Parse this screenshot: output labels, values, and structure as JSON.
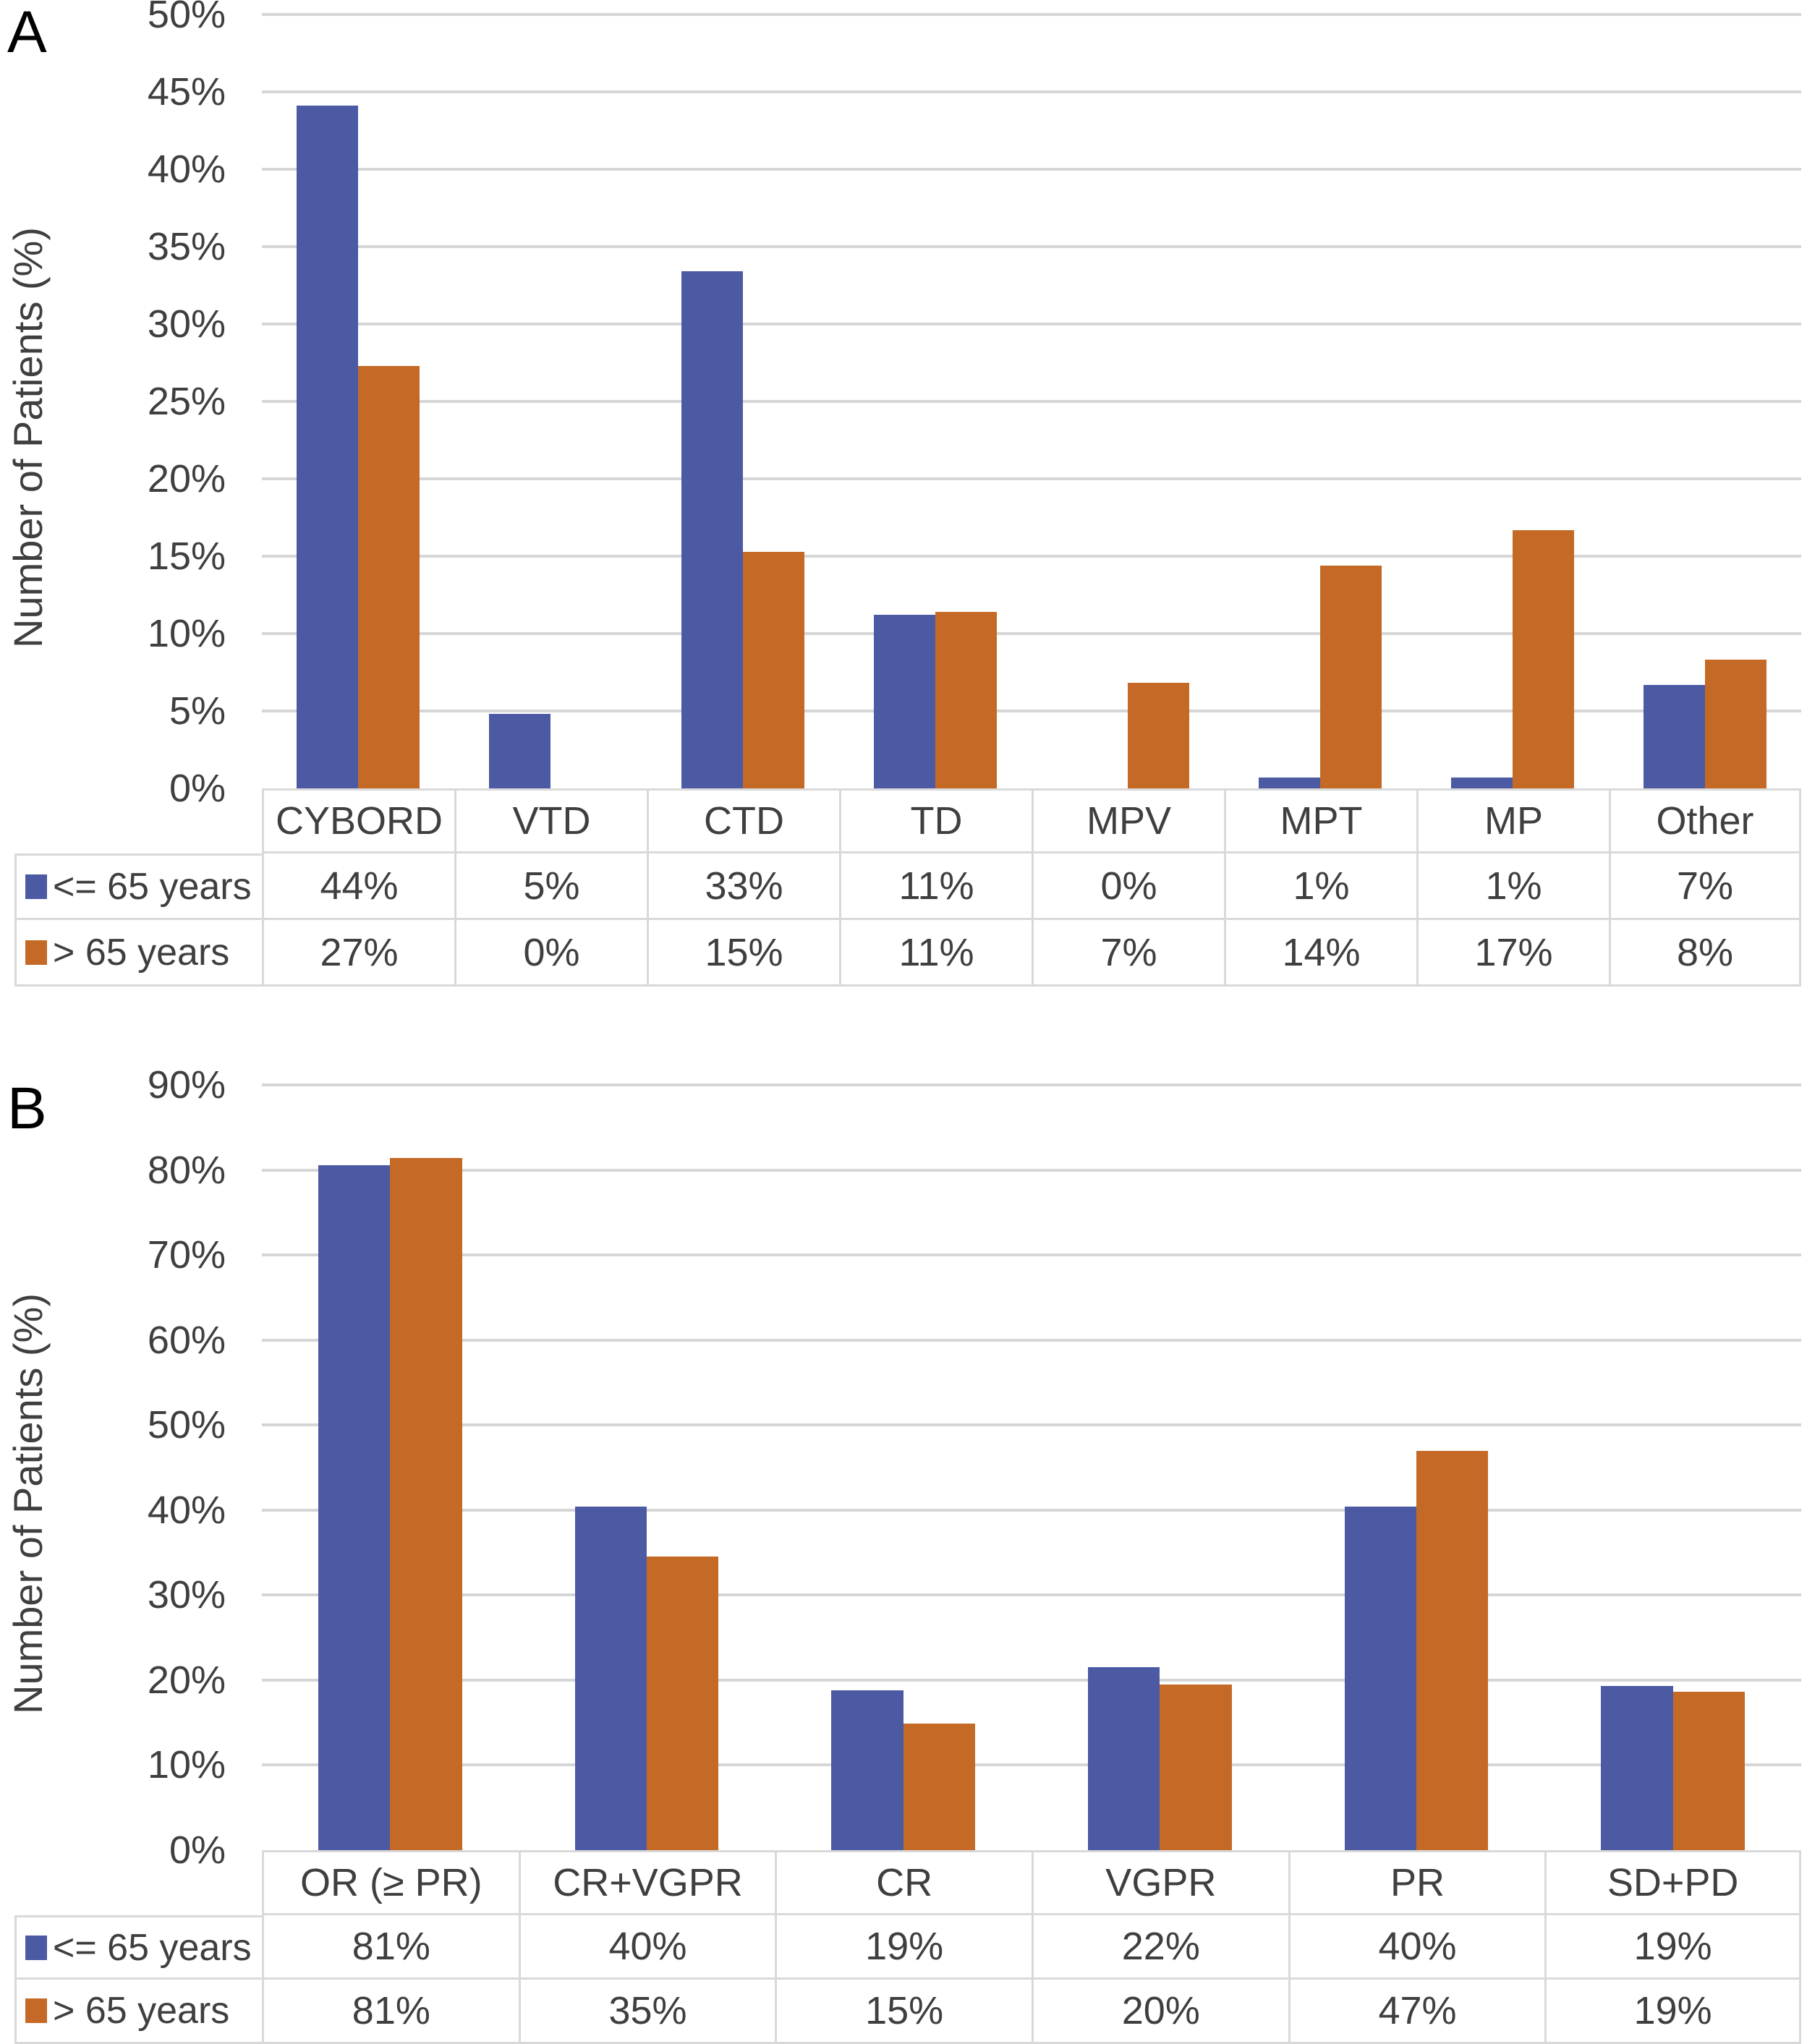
{
  "figure": {
    "background": "#ffffff",
    "text_color": "#3f3f3f",
    "gridline_color": "#d6d6d6",
    "table_border_color": "#d9d9d9"
  },
  "legend": {
    "series1_label": "<= 65 years",
    "series2_label": "> 65 years",
    "series1_color": "#4c5aa4",
    "series2_color": "#c46a26"
  },
  "chart_data": [
    {
      "type": "bar",
      "panel": "A",
      "title": "",
      "ylabel": "Number of Patients (%)",
      "ylim": [
        0,
        50
      ],
      "yticks": [
        "50%",
        "45%",
        "40%",
        "35%",
        "30%",
        "25%",
        "20%",
        "15%",
        "10%",
        "5%",
        "0%"
      ],
      "grid": true,
      "legend_position": "table-left",
      "categories": [
        "CYBORD",
        "VTD",
        "CTD",
        "TD",
        "MPV",
        "MPT",
        "MP",
        "Other"
      ],
      "series": [
        {
          "name": "<= 65 years",
          "color": "#4c5aa4",
          "values": [
            44.1,
            4.8,
            33.4,
            11.2,
            0,
            0.7,
            0.7,
            6.7
          ],
          "labels": [
            "44%",
            "5%",
            "33%",
            "11%",
            "0%",
            "1%",
            "1%",
            "7%"
          ]
        },
        {
          "name": "> 65 years",
          "color": "#c46a26",
          "values": [
            27.3,
            0,
            15.3,
            11.4,
            6.8,
            14.4,
            16.7,
            8.3
          ],
          "labels": [
            "27%",
            "0%",
            "15%",
            "11%",
            "7%",
            "14%",
            "17%",
            "8%"
          ]
        }
      ]
    },
    {
      "type": "bar",
      "panel": "B",
      "title": "",
      "ylabel": "Number of Patients (%)",
      "ylim": [
        0,
        90
      ],
      "yticks": [
        "90%",
        "80%",
        "70%",
        "60%",
        "50%",
        "40%",
        "30%",
        "20%",
        "10%",
        "0%"
      ],
      "grid": true,
      "legend_position": "table-left",
      "categories": [
        "OR (≥ PR)",
        "CR+VGPR",
        "CR",
        "VGPR",
        "PR",
        "SD+PD"
      ],
      "series": [
        {
          "name": "<= 65 years",
          "color": "#4c5aa4",
          "values": [
            80.6,
            40.4,
            18.8,
            21.5,
            40.4,
            19.3
          ],
          "labels": [
            "81%",
            "40%",
            "19%",
            "22%",
            "40%",
            "19%"
          ]
        },
        {
          "name": "> 65 years",
          "color": "#c46a26",
          "values": [
            81.4,
            34.5,
            14.9,
            19.5,
            47.0,
            18.6
          ],
          "labels": [
            "81%",
            "35%",
            "15%",
            "20%",
            "47%",
            "19%"
          ]
        }
      ]
    }
  ]
}
